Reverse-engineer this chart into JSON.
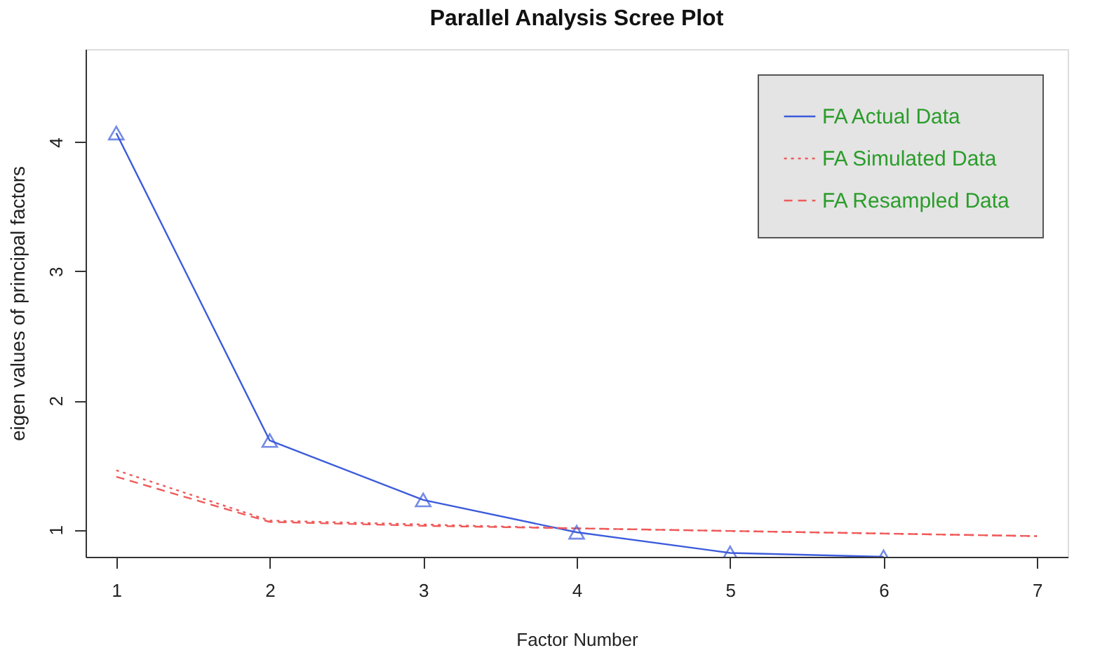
{
  "chart_data": {
    "type": "line",
    "title": "Parallel Analysis Scree Plot",
    "xlabel": "Factor Number",
    "ylabel": "eigen values of principal factors",
    "x": [
      1,
      2,
      3,
      4,
      5,
      6,
      7
    ],
    "series": [
      {
        "name": "FA  Actual Data",
        "color": "#3b5bdb",
        "values": [
          4.07,
          1.69,
          1.23,
          0.98,
          0.82,
          0.79,
          null
        ],
        "marker": "triangle",
        "line_style": "solid"
      },
      {
        "name": "FA  Simulated Data",
        "color": "#f05a5a",
        "values": [
          1.46,
          1.07,
          1.04,
          1.01,
          0.99,
          0.97,
          0.95
        ],
        "marker": "none",
        "line_style": "dotted"
      },
      {
        "name": "FA  Resampled Data",
        "color": "#f05a5a",
        "values": [
          1.41,
          1.06,
          1.03,
          1.01,
          0.99,
          0.97,
          0.95
        ],
        "marker": "none",
        "line_style": "dashed"
      }
    ],
    "xlim": [
      0.8,
      7.2
    ],
    "ylim": [
      0.79,
      4.72
    ],
    "xticks": [
      1,
      2,
      3,
      4,
      5,
      6,
      7
    ],
    "yticks": [
      1,
      2,
      3,
      4
    ],
    "grid": false,
    "legend": "top right"
  }
}
